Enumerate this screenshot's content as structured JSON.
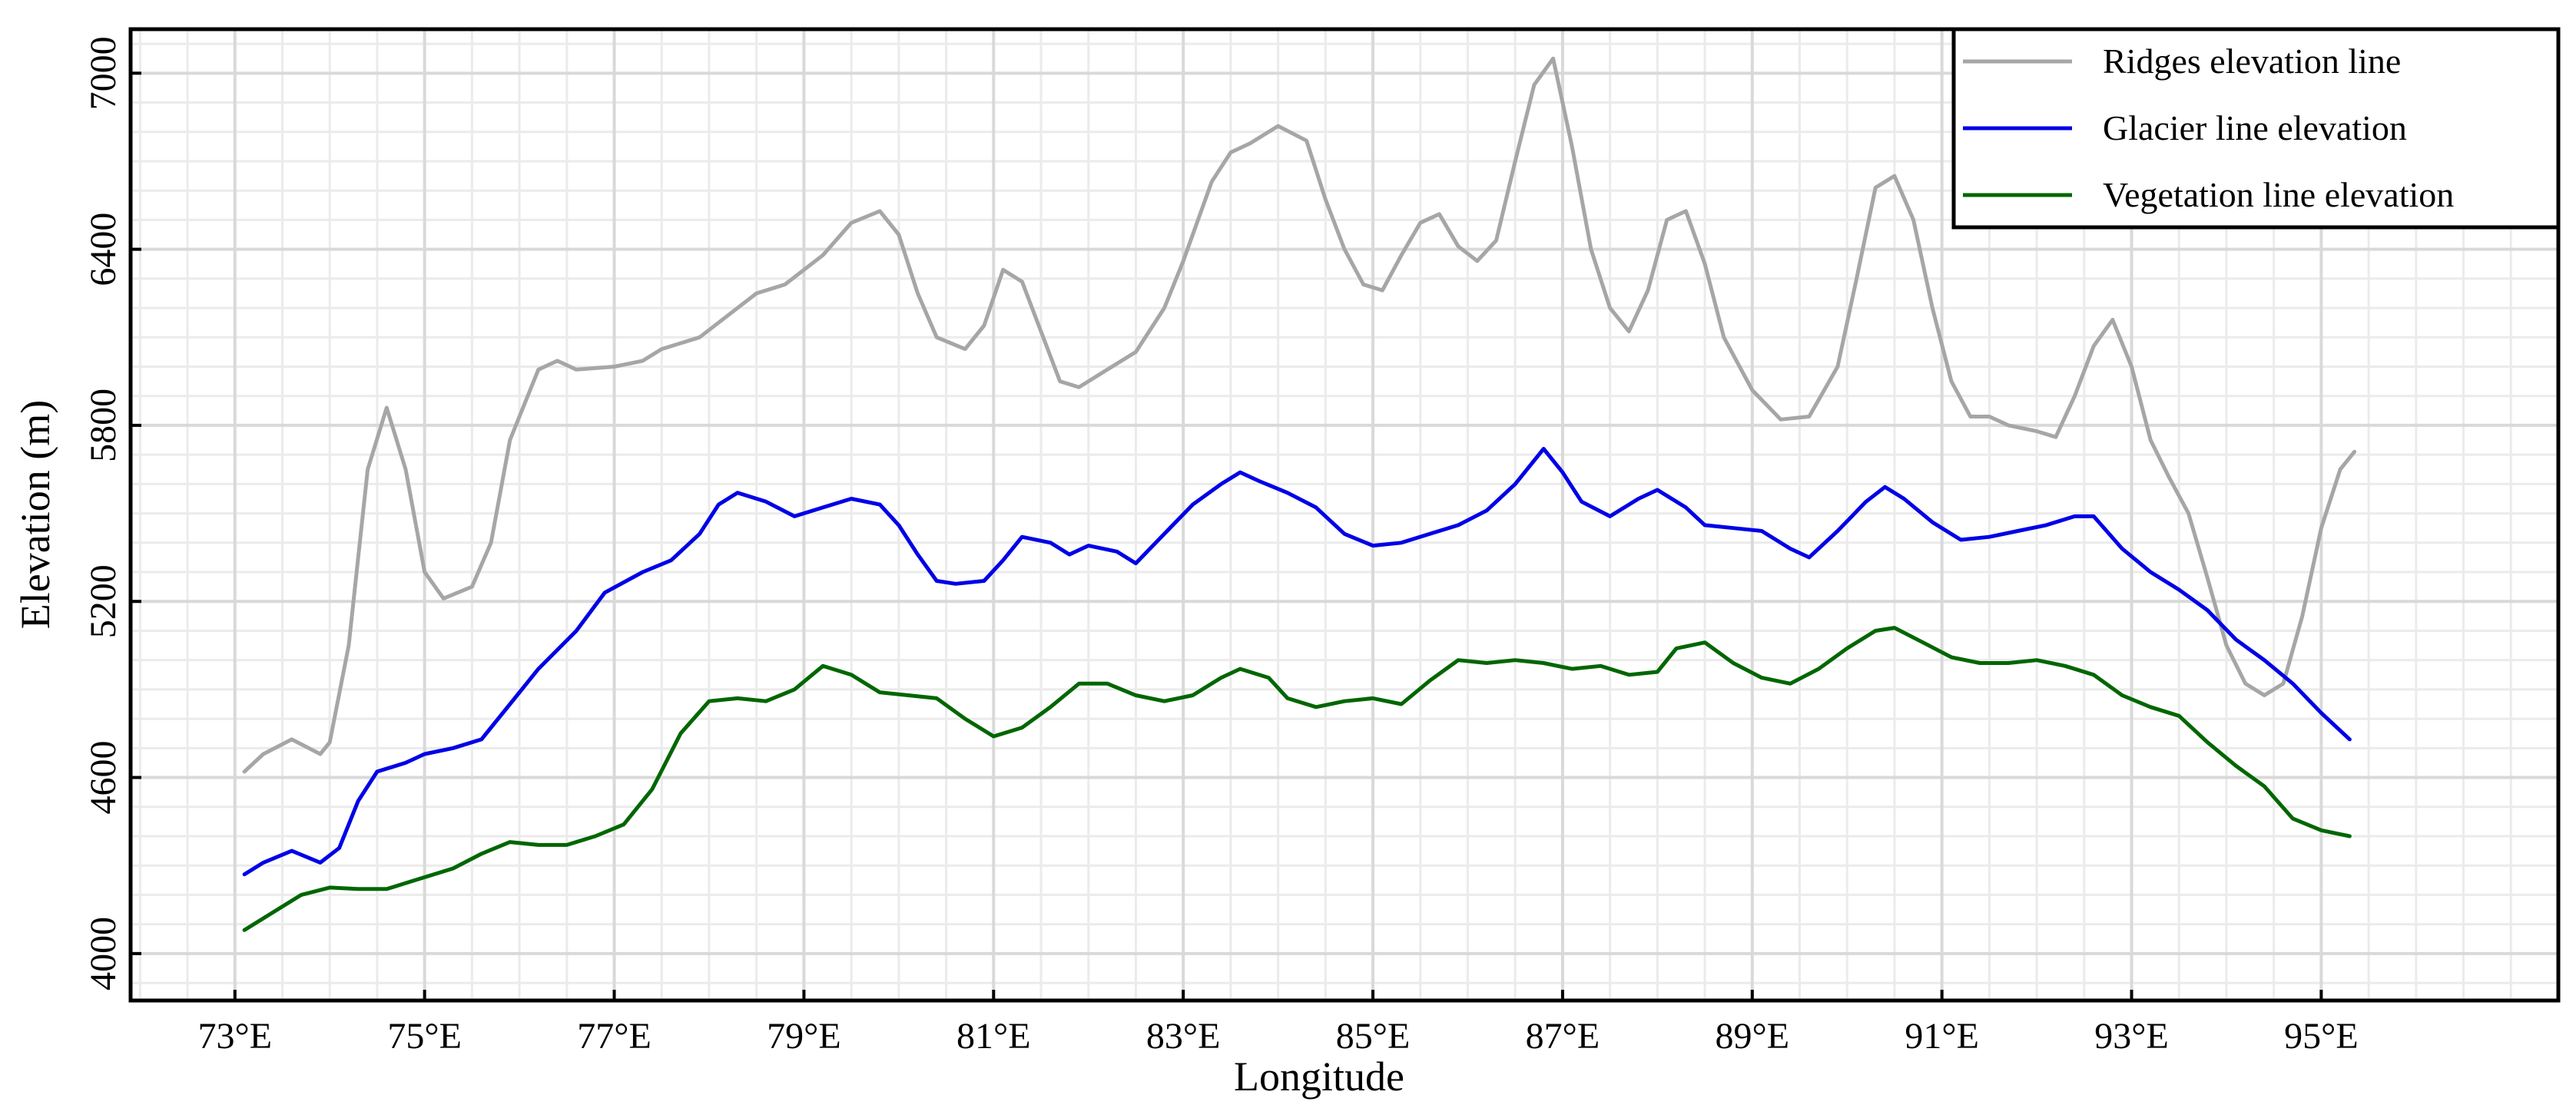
{
  "chart_data": {
    "type": "line",
    "xlabel": "Longitude",
    "ylabel": "Elevation (m)",
    "xlim": [
      71.9,
      97.5
    ],
    "ylim": [
      3840,
      7150
    ],
    "x_ticks": [
      {
        "value": 73,
        "label": "73°E"
      },
      {
        "value": 75,
        "label": "75°E"
      },
      {
        "value": 77,
        "label": "77°E"
      },
      {
        "value": 79,
        "label": "79°E"
      },
      {
        "value": 81,
        "label": "81°E"
      },
      {
        "value": 83,
        "label": "83°E"
      },
      {
        "value": 85,
        "label": "85°E"
      },
      {
        "value": 87,
        "label": "87°E"
      },
      {
        "value": 89,
        "label": "89°E"
      },
      {
        "value": 91,
        "label": "91°E"
      },
      {
        "value": 93,
        "label": "93°E"
      },
      {
        "value": 95,
        "label": "95°E"
      }
    ],
    "y_ticks": [
      {
        "value": 4000,
        "label": "4000"
      },
      {
        "value": 4600,
        "label": "4600"
      },
      {
        "value": 5200,
        "label": "5200"
      },
      {
        "value": 5800,
        "label": "5800"
      },
      {
        "value": 6400,
        "label": "6400"
      },
      {
        "value": 7000,
        "label": "7000"
      }
    ],
    "grid": true,
    "legend_position": "top-right",
    "series": [
      {
        "name": "Ridges elevation line",
        "color": "#a6a6a6",
        "points": [
          [
            73.1,
            4620
          ],
          [
            73.3,
            4680
          ],
          [
            73.6,
            4730
          ],
          [
            73.9,
            4680
          ],
          [
            74.0,
            4720
          ],
          [
            74.2,
            5050
          ],
          [
            74.4,
            5650
          ],
          [
            74.6,
            5860
          ],
          [
            74.8,
            5650
          ],
          [
            75.0,
            5300
          ],
          [
            75.2,
            5210
          ],
          [
            75.5,
            5250
          ],
          [
            75.7,
            5400
          ],
          [
            75.9,
            5750
          ],
          [
            76.2,
            5990
          ],
          [
            76.4,
            6020
          ],
          [
            76.6,
            5990
          ],
          [
            77.0,
            6000
          ],
          [
            77.3,
            6020
          ],
          [
            77.5,
            6060
          ],
          [
            77.9,
            6100
          ],
          [
            78.1,
            6150
          ],
          [
            78.5,
            6250
          ],
          [
            78.8,
            6280
          ],
          [
            79.2,
            6380
          ],
          [
            79.5,
            6490
          ],
          [
            79.8,
            6530
          ],
          [
            80.0,
            6450
          ],
          [
            80.2,
            6250
          ],
          [
            80.4,
            6100
          ],
          [
            80.7,
            6060
          ],
          [
            80.9,
            6140
          ],
          [
            81.1,
            6330
          ],
          [
            81.3,
            6290
          ],
          [
            81.5,
            6120
          ],
          [
            81.7,
            5950
          ],
          [
            81.9,
            5930
          ],
          [
            82.2,
            5990
          ],
          [
            82.5,
            6050
          ],
          [
            82.8,
            6200
          ],
          [
            83.0,
            6360
          ],
          [
            83.3,
            6630
          ],
          [
            83.5,
            6730
          ],
          [
            83.7,
            6760
          ],
          [
            84.0,
            6820
          ],
          [
            84.3,
            6770
          ],
          [
            84.5,
            6570
          ],
          [
            84.7,
            6400
          ],
          [
            84.9,
            6280
          ],
          [
            85.1,
            6260
          ],
          [
            85.3,
            6380
          ],
          [
            85.5,
            6490
          ],
          [
            85.7,
            6520
          ],
          [
            85.9,
            6410
          ],
          [
            86.1,
            6360
          ],
          [
            86.3,
            6430
          ],
          [
            86.5,
            6700
          ],
          [
            86.7,
            6960
          ],
          [
            86.9,
            7050
          ],
          [
            87.1,
            6750
          ],
          [
            87.3,
            6400
          ],
          [
            87.5,
            6200
          ],
          [
            87.7,
            6120
          ],
          [
            87.9,
            6260
          ],
          [
            88.1,
            6500
          ],
          [
            88.3,
            6530
          ],
          [
            88.5,
            6350
          ],
          [
            88.7,
            6100
          ],
          [
            89.0,
            5920
          ],
          [
            89.3,
            5820
          ],
          [
            89.6,
            5830
          ],
          [
            89.9,
            6000
          ],
          [
            90.1,
            6300
          ],
          [
            90.3,
            6610
          ],
          [
            90.5,
            6650
          ],
          [
            90.7,
            6500
          ],
          [
            90.9,
            6200
          ],
          [
            91.1,
            5950
          ],
          [
            91.3,
            5830
          ],
          [
            91.5,
            5830
          ],
          [
            91.7,
            5800
          ],
          [
            92.0,
            5780
          ],
          [
            92.2,
            5760
          ],
          [
            92.4,
            5900
          ],
          [
            92.6,
            6070
          ],
          [
            92.8,
            6160
          ],
          [
            93.0,
            6000
          ],
          [
            93.2,
            5750
          ],
          [
            93.4,
            5620
          ],
          [
            93.6,
            5500
          ],
          [
            93.8,
            5280
          ],
          [
            94.0,
            5050
          ],
          [
            94.2,
            4920
          ],
          [
            94.4,
            4880
          ],
          [
            94.6,
            4920
          ],
          [
            94.8,
            5150
          ],
          [
            95.0,
            5450
          ],
          [
            95.2,
            5650
          ],
          [
            95.35,
            5710
          ]
        ]
      },
      {
        "name": "Glacier line elevation",
        "color": "#0000e6",
        "points": [
          [
            73.1,
            4270
          ],
          [
            73.3,
            4310
          ],
          [
            73.6,
            4350
          ],
          [
            73.9,
            4310
          ],
          [
            74.1,
            4360
          ],
          [
            74.3,
            4520
          ],
          [
            74.5,
            4620
          ],
          [
            74.8,
            4650
          ],
          [
            75.0,
            4680
          ],
          [
            75.3,
            4700
          ],
          [
            75.6,
            4730
          ],
          [
            75.9,
            4850
          ],
          [
            76.2,
            4970
          ],
          [
            76.6,
            5100
          ],
          [
            76.9,
            5230
          ],
          [
            77.3,
            5300
          ],
          [
            77.6,
            5340
          ],
          [
            77.9,
            5430
          ],
          [
            78.1,
            5530
          ],
          [
            78.3,
            5570
          ],
          [
            78.6,
            5540
          ],
          [
            78.9,
            5490
          ],
          [
            79.2,
            5520
          ],
          [
            79.5,
            5550
          ],
          [
            79.8,
            5530
          ],
          [
            80.0,
            5460
          ],
          [
            80.2,
            5360
          ],
          [
            80.4,
            5270
          ],
          [
            80.6,
            5260
          ],
          [
            80.9,
            5270
          ],
          [
            81.1,
            5340
          ],
          [
            81.3,
            5420
          ],
          [
            81.6,
            5400
          ],
          [
            81.8,
            5360
          ],
          [
            82.0,
            5390
          ],
          [
            82.3,
            5370
          ],
          [
            82.5,
            5330
          ],
          [
            82.8,
            5430
          ],
          [
            83.1,
            5530
          ],
          [
            83.4,
            5600
          ],
          [
            83.6,
            5640
          ],
          [
            83.8,
            5610
          ],
          [
            84.1,
            5570
          ],
          [
            84.4,
            5520
          ],
          [
            84.7,
            5430
          ],
          [
            85.0,
            5390
          ],
          [
            85.3,
            5400
          ],
          [
            85.6,
            5430
          ],
          [
            85.9,
            5460
          ],
          [
            86.2,
            5510
          ],
          [
            86.5,
            5600
          ],
          [
            86.8,
            5720
          ],
          [
            87.0,
            5640
          ],
          [
            87.2,
            5540
          ],
          [
            87.5,
            5490
          ],
          [
            87.8,
            5550
          ],
          [
            88.0,
            5580
          ],
          [
            88.3,
            5520
          ],
          [
            88.5,
            5460
          ],
          [
            88.8,
            5450
          ],
          [
            89.1,
            5440
          ],
          [
            89.4,
            5380
          ],
          [
            89.6,
            5350
          ],
          [
            89.9,
            5440
          ],
          [
            90.2,
            5540
          ],
          [
            90.4,
            5590
          ],
          [
            90.6,
            5550
          ],
          [
            90.9,
            5470
          ],
          [
            91.2,
            5410
          ],
          [
            91.5,
            5420
          ],
          [
            91.8,
            5440
          ],
          [
            92.1,
            5460
          ],
          [
            92.4,
            5490
          ],
          [
            92.6,
            5490
          ],
          [
            92.9,
            5380
          ],
          [
            93.2,
            5300
          ],
          [
            93.5,
            5240
          ],
          [
            93.8,
            5170
          ],
          [
            94.1,
            5070
          ],
          [
            94.4,
            5000
          ],
          [
            94.7,
            4920
          ],
          [
            95.0,
            4820
          ],
          [
            95.3,
            4730
          ]
        ]
      },
      {
        "name": "Vegetation line elevation",
        "color": "#006600",
        "points": [
          [
            73.1,
            4080
          ],
          [
            73.4,
            4140
          ],
          [
            73.7,
            4200
          ],
          [
            74.0,
            4225
          ],
          [
            74.3,
            4220
          ],
          [
            74.6,
            4220
          ],
          [
            74.9,
            4250
          ],
          [
            75.3,
            4290
          ],
          [
            75.6,
            4340
          ],
          [
            75.9,
            4380
          ],
          [
            76.2,
            4370
          ],
          [
            76.5,
            4370
          ],
          [
            76.8,
            4400
          ],
          [
            77.1,
            4440
          ],
          [
            77.4,
            4560
          ],
          [
            77.7,
            4750
          ],
          [
            78.0,
            4860
          ],
          [
            78.3,
            4870
          ],
          [
            78.6,
            4860
          ],
          [
            78.9,
            4900
          ],
          [
            79.2,
            4980
          ],
          [
            79.5,
            4950
          ],
          [
            79.8,
            4890
          ],
          [
            80.1,
            4880
          ],
          [
            80.4,
            4870
          ],
          [
            80.7,
            4800
          ],
          [
            81.0,
            4740
          ],
          [
            81.3,
            4770
          ],
          [
            81.6,
            4840
          ],
          [
            81.9,
            4920
          ],
          [
            82.2,
            4920
          ],
          [
            82.5,
            4880
          ],
          [
            82.8,
            4860
          ],
          [
            83.1,
            4880
          ],
          [
            83.4,
            4940
          ],
          [
            83.6,
            4970
          ],
          [
            83.9,
            4940
          ],
          [
            84.1,
            4870
          ],
          [
            84.4,
            4840
          ],
          [
            84.7,
            4860
          ],
          [
            85.0,
            4870
          ],
          [
            85.3,
            4850
          ],
          [
            85.6,
            4930
          ],
          [
            85.9,
            5000
          ],
          [
            86.2,
            4990
          ],
          [
            86.5,
            5000
          ],
          [
            86.8,
            4990
          ],
          [
            87.1,
            4970
          ],
          [
            87.4,
            4980
          ],
          [
            87.7,
            4950
          ],
          [
            88.0,
            4960
          ],
          [
            88.2,
            5040
          ],
          [
            88.5,
            5060
          ],
          [
            88.8,
            4990
          ],
          [
            89.1,
            4940
          ],
          [
            89.4,
            4920
          ],
          [
            89.7,
            4970
          ],
          [
            90.0,
            5040
          ],
          [
            90.3,
            5100
          ],
          [
            90.5,
            5110
          ],
          [
            90.8,
            5060
          ],
          [
            91.1,
            5010
          ],
          [
            91.4,
            4990
          ],
          [
            91.7,
            4990
          ],
          [
            92.0,
            5000
          ],
          [
            92.3,
            4980
          ],
          [
            92.6,
            4950
          ],
          [
            92.9,
            4880
          ],
          [
            93.2,
            4840
          ],
          [
            93.5,
            4810
          ],
          [
            93.8,
            4720
          ],
          [
            94.1,
            4640
          ],
          [
            94.4,
            4570
          ],
          [
            94.7,
            4460
          ],
          [
            95.0,
            4420
          ],
          [
            95.3,
            4400
          ]
        ]
      }
    ]
  }
}
